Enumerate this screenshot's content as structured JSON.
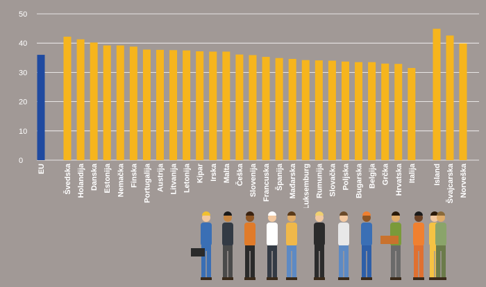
{
  "chart_data": {
    "type": "bar",
    "title": "",
    "xlabel": "",
    "ylabel": "",
    "ylim": [
      0,
      50
    ],
    "yticks": [
      "0",
      "10",
      "20",
      "30",
      "40",
      "50"
    ],
    "grid": true,
    "categories": [
      "EU",
      "Švedska",
      "Holandija",
      "Danska",
      "Estonija",
      "Nemačka",
      "Finska",
      "Portugalija",
      "Austrija",
      "Litvanija",
      "Letonija",
      "Kipar",
      "Irska",
      "Malta",
      "Češka",
      "Slovenija",
      "Francuska",
      "Španija",
      "Mađarska",
      "Luksemburg",
      "Rumunija",
      "Slovačka",
      "Poljska",
      "Bugarska",
      "Belgija",
      "Grčka",
      "Hrvatska",
      "Italija",
      "Island",
      "Švajcarska",
      "Norveška"
    ],
    "values": [
      36,
      42.2,
      41.3,
      40.2,
      39.2,
      39.2,
      38.8,
      37.8,
      37.7,
      37.6,
      37.5,
      37.2,
      37.1,
      37.1,
      36.1,
      35.9,
      35.3,
      34.9,
      34.6,
      34.2,
      34.1,
      34.0,
      33.7,
      33.5,
      33.5,
      33.0,
      32.9,
      31.5,
      44.9,
      42.6,
      39.9
    ],
    "highlight": "EU"
  },
  "colors": {
    "background": "#a19996",
    "bar": "#f6b51d",
    "bar_highlight": "#1f4aa0",
    "grid": "#ffffff",
    "text": "#ffffff"
  }
}
